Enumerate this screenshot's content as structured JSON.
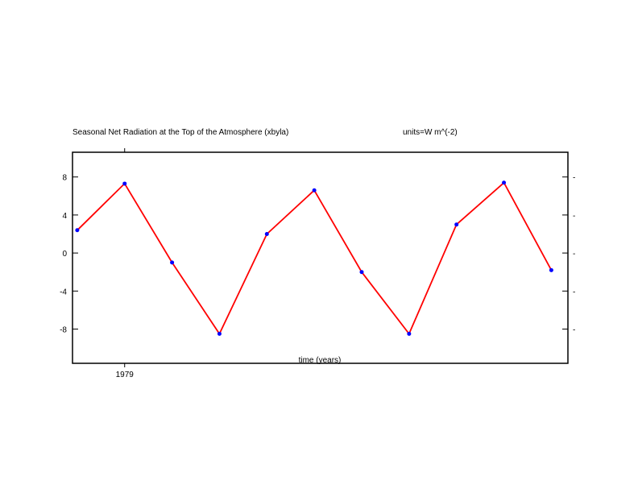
{
  "chart_data": {
    "type": "line",
    "title": "Seasonal Net Radiation at the Top of the Atmosphere (xbyla)",
    "units_label": "units=W m^(-2)",
    "xlabel": "time (years)",
    "ylabel": "",
    "x_tick_labels": [
      {
        "x": 1,
        "label": "1979"
      }
    ],
    "y_ticks": [
      8,
      4,
      0,
      -4,
      -8
    ],
    "ylim": [
      -11.6,
      10.6
    ],
    "xlim": [
      -0.1,
      10.35
    ],
    "grid": false,
    "series": [
      {
        "x": [
          0,
          1,
          2,
          3,
          4,
          5,
          6,
          7,
          8,
          9,
          10
        ],
        "values": [
          2.4,
          7.3,
          -1.0,
          -8.5,
          2.0,
          6.6,
          -2.0,
          -8.5,
          3.0,
          7.4,
          -1.8
        ],
        "line_color": "#ff0000",
        "marker_color": "#0000ff"
      }
    ]
  }
}
